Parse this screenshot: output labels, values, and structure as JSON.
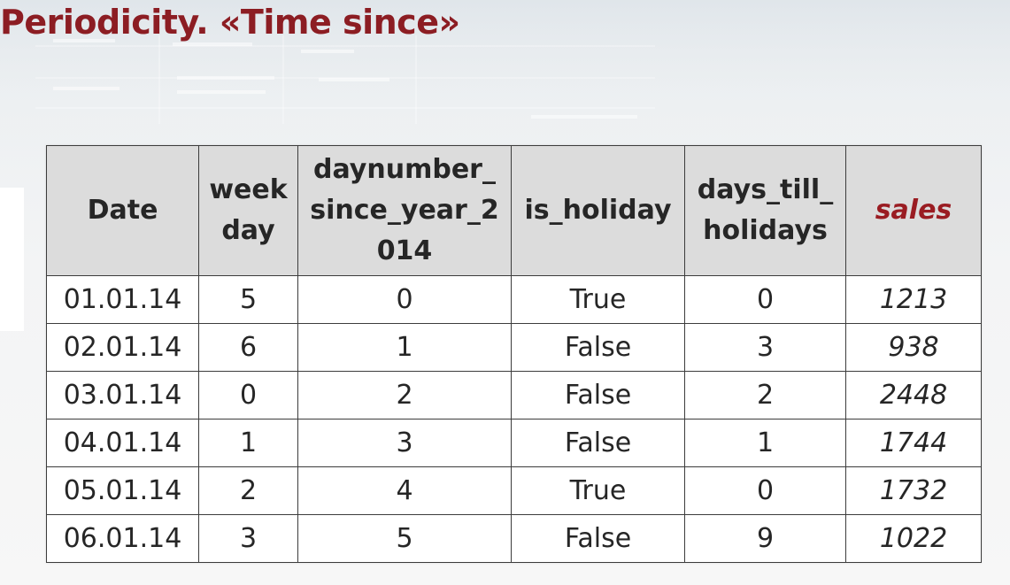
{
  "slide": {
    "title": "Periodicity. «Time since»"
  },
  "table": {
    "headers": {
      "date": "Date",
      "week_day": [
        "week",
        "day"
      ],
      "daynumber": [
        "daynumber_",
        "since_year_2",
        "014"
      ],
      "is_holiday": "is_holiday",
      "days_till": [
        "days_till_",
        "holidays"
      ],
      "sales": "sales"
    },
    "rows": [
      {
        "date": "01.01.14",
        "week_day": "5",
        "daynumber": "0",
        "is_holiday": "True",
        "days_till": "0",
        "sales": "1213"
      },
      {
        "date": "02.01.14",
        "week_day": "6",
        "daynumber": "1",
        "is_holiday": "False",
        "days_till": "3",
        "sales": "938"
      },
      {
        "date": "03.01.14",
        "week_day": "0",
        "daynumber": "2",
        "is_holiday": "False",
        "days_till": "2",
        "sales": "2448"
      },
      {
        "date": "04.01.14",
        "week_day": "1",
        "daynumber": "3",
        "is_holiday": "False",
        "days_till": "1",
        "sales": "1744"
      },
      {
        "date": "05.01.14",
        "week_day": "2",
        "daynumber": "4",
        "is_holiday": "True",
        "days_till": "0",
        "sales": "1732"
      },
      {
        "date": "06.01.14",
        "week_day": "3",
        "daynumber": "5",
        "is_holiday": "False",
        "days_till": "9",
        "sales": "1022"
      }
    ]
  },
  "colors": {
    "title": "#8c1d23",
    "sales_header": "#9a1c22",
    "header_bg": "#dcdcdc",
    "border": "#3c3c3c"
  }
}
